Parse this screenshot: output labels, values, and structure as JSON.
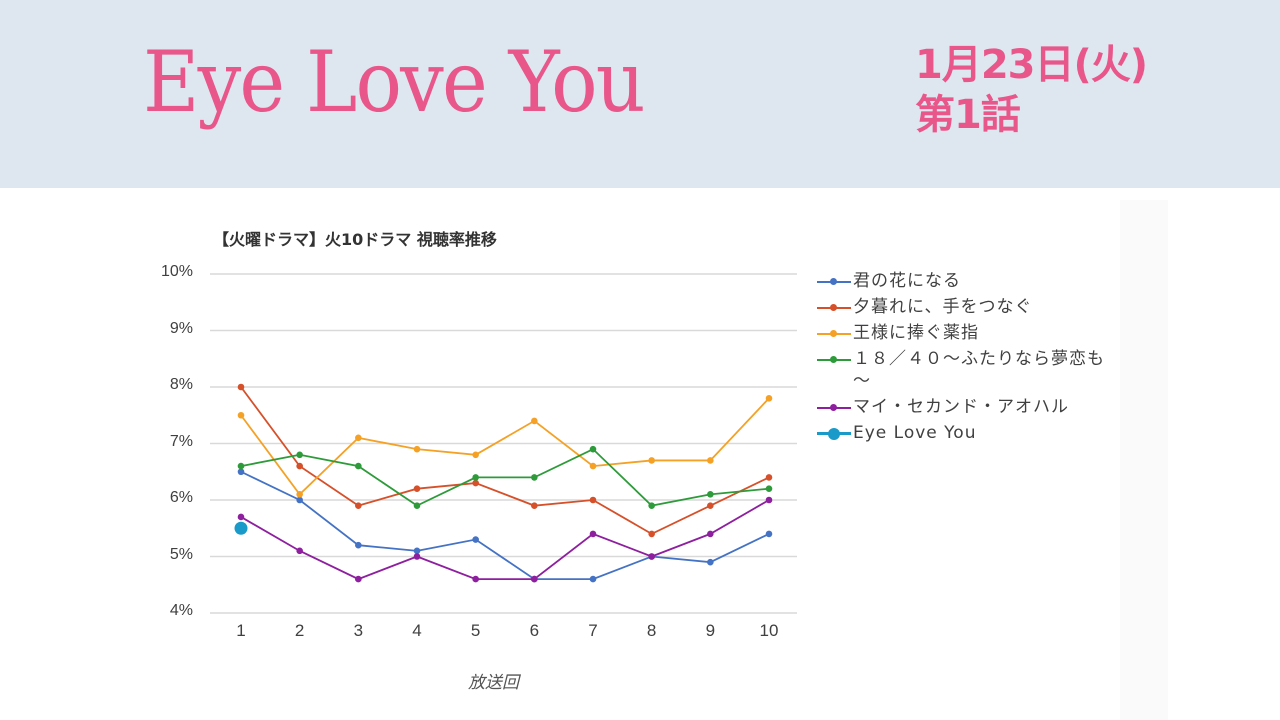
{
  "header": {
    "show_title": "Eye Love You",
    "date": "1月23日(火)",
    "episode": "第1話"
  },
  "colors": {
    "header_bg": "#dee7f0",
    "accent_pink": "#e8568a"
  },
  "chart_data": {
    "type": "line",
    "title": "【火曜ドラマ】火10ドラマ 視聴率推移",
    "xlabel": "放送回",
    "ylabel": "",
    "ylim": [
      4,
      10
    ],
    "y_ticks": [
      "10%",
      "9%",
      "8%",
      "7%",
      "6%",
      "5%",
      "4%"
    ],
    "categories": [
      "1",
      "2",
      "3",
      "4",
      "5",
      "6",
      "7",
      "8",
      "9",
      "10"
    ],
    "grid": true,
    "legend_position": "right",
    "series": [
      {
        "name": "君の花になる",
        "color": "#4472c4",
        "values": [
          6.5,
          6.0,
          5.2,
          5.1,
          5.3,
          4.6,
          4.6,
          5.0,
          4.9,
          5.4
        ]
      },
      {
        "name": "夕暮れに、手をつなぐ",
        "color": "#d6502a",
        "values": [
          8.0,
          6.6,
          5.9,
          6.2,
          6.3,
          5.9,
          6.0,
          5.4,
          5.9,
          6.4
        ]
      },
      {
        "name": "王様に捧ぐ薬指",
        "color": "#f4a125",
        "values": [
          7.5,
          6.1,
          7.1,
          6.9,
          6.8,
          7.4,
          6.6,
          6.7,
          6.7,
          7.8
        ]
      },
      {
        "name": "１８／４０～ふたりなら夢恋も～",
        "color": "#2e9b3a",
        "values": [
          6.6,
          6.8,
          6.6,
          5.9,
          6.4,
          6.4,
          6.9,
          5.9,
          6.1,
          6.2
        ]
      },
      {
        "name": "マイ・セカンド・アオハル",
        "color": "#8e1f9e",
        "values": [
          5.7,
          5.1,
          4.6,
          5.0,
          4.6,
          4.6,
          5.4,
          5.0,
          5.4,
          6.0
        ]
      },
      {
        "name": "Eye Love You",
        "color": "#1a9ac8",
        "values": [
          5.5,
          null,
          null,
          null,
          null,
          null,
          null,
          null,
          null,
          null
        ]
      }
    ]
  },
  "legend": {
    "items": [
      {
        "label": "君の花になる"
      },
      {
        "label": "夕暮れに、手をつなぐ"
      },
      {
        "label": "王様に捧ぐ薬指"
      },
      {
        "label": "１８／４０～ふたりなら夢恋も～"
      },
      {
        "label": "マイ・セカンド・アオハル"
      },
      {
        "label": "Eye Love You"
      }
    ]
  }
}
